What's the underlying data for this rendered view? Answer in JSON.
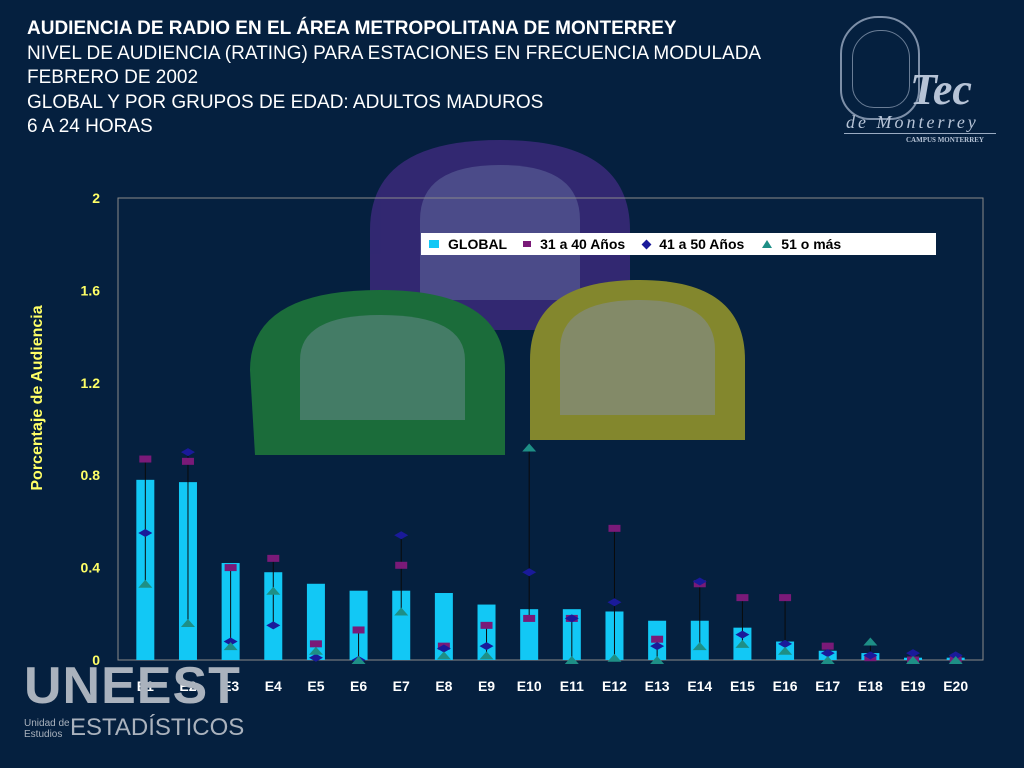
{
  "title": {
    "line1": "AUDIENCIA DE RADIO EN EL ÁREA METROPOLITANA DE MONTERREY",
    "line2": "NIVEL DE AUDIENCIA (RATING) PARA ESTACIONES EN FRECUENCIA MODULADA",
    "line3": "FEBRERO DE 2002",
    "line4": "GLOBAL Y POR GRUPOS DE EDAD: ADULTOS MADUROS",
    "line5": "6 A 24 HORAS"
  },
  "logo": {
    "main": "Tec",
    "sub": "de Monterrey",
    "campus": "CAMPUS MONTERREY"
  },
  "brand": {
    "big": "UNEEST",
    "small1": "Unidad de Estudios",
    "small2": "ESTADÍSTICOS"
  },
  "colors": {
    "background": "#05203f",
    "bar": "#12c8f5",
    "s31_40": "#7a1a78",
    "s41_50": "#1a1a9a",
    "s51": "#1e8f86",
    "axis_label": "#ffff66"
  },
  "chart_data": {
    "type": "bar",
    "ylabel": "Porcentaje de Audiencia",
    "ylim": [
      0,
      2
    ],
    "yticks": [
      "0",
      "0.4",
      "0.8",
      "1.2",
      "1.6",
      "2"
    ],
    "grid": false,
    "legend_position": "top-right",
    "categories": [
      "E1",
      "E2",
      "E3",
      "E4",
      "E5",
      "E6",
      "E7",
      "E8",
      "E9",
      "E10",
      "E11",
      "E12",
      "E13",
      "E14",
      "E15",
      "E16",
      "E17",
      "E18",
      "E19",
      "E20"
    ],
    "series": [
      {
        "name": "GLOBAL",
        "marker": "bar",
        "values": [
          0.78,
          0.77,
          0.42,
          0.38,
          0.33,
          0.3,
          0.3,
          0.29,
          0.24,
          0.22,
          0.22,
          0.21,
          0.17,
          0.17,
          0.14,
          0.08,
          0.04,
          0.03,
          0.01,
          0.01
        ]
      },
      {
        "name": "31 a 40 Años",
        "marker": "square",
        "values": [
          0.87,
          0.86,
          0.4,
          0.44,
          0.07,
          0.13,
          0.41,
          0.06,
          0.15,
          0.18,
          0.18,
          0.57,
          0.09,
          0.33,
          0.27,
          0.27,
          0.06,
          0.01,
          0.0,
          0.0
        ]
      },
      {
        "name": "41 a 50 Años",
        "marker": "diamond",
        "values": [
          0.55,
          0.9,
          0.08,
          0.15,
          0.01,
          0.0,
          0.54,
          0.05,
          0.06,
          0.38,
          0.18,
          0.25,
          0.06,
          0.34,
          0.11,
          0.07,
          0.03,
          0.02,
          0.03,
          0.02
        ]
      },
      {
        "name": "51 o más",
        "marker": "triangle",
        "values": [
          0.33,
          0.16,
          0.06,
          0.3,
          0.04,
          0.0,
          0.21,
          0.02,
          0.02,
          0.92,
          0.0,
          0.01,
          0.0,
          0.06,
          0.07,
          0.04,
          0.0,
          0.08,
          0.0,
          0.0
        ]
      }
    ]
  }
}
